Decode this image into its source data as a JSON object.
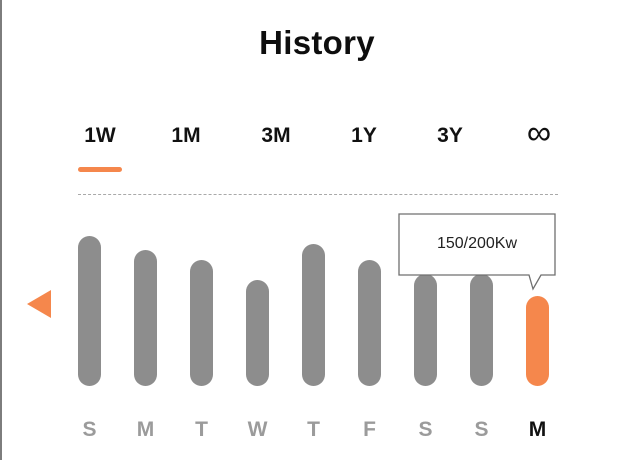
{
  "header": {
    "title": "History"
  },
  "tabs": [
    {
      "label": "1W",
      "selected": true
    },
    {
      "label": "1M",
      "selected": false
    },
    {
      "label": "3M",
      "selected": false
    },
    {
      "label": "1Y",
      "selected": false
    },
    {
      "label": "3Y",
      "selected": false
    },
    {
      "label": "∞",
      "selected": false
    }
  ],
  "tooltip": {
    "text": "150/200Kw"
  },
  "colors": {
    "accent": "#f5874c",
    "bar": "#8d8d8d",
    "inactive_day": "#9b9b9b"
  },
  "icons": {
    "prev": "triangle-left-icon",
    "all_time": "infinity-icon"
  },
  "chart_data": {
    "type": "bar",
    "categories": [
      "S",
      "M",
      "T",
      "W",
      "T",
      "F",
      "S",
      "S",
      "M"
    ],
    "values": [
      150,
      136,
      126,
      106,
      142,
      126,
      112,
      112,
      90
    ],
    "selected_index": 8
  }
}
